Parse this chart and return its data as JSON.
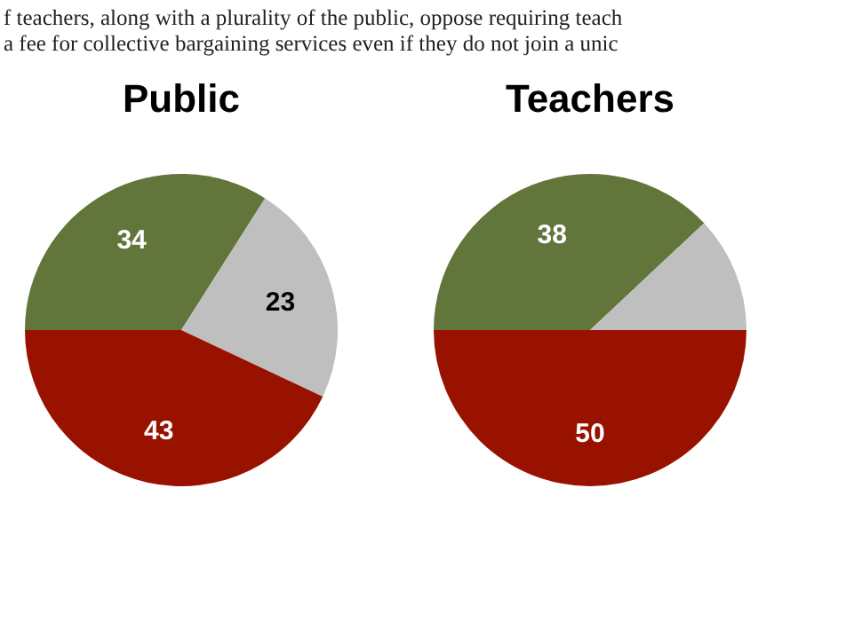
{
  "chart_data": [
    {
      "type": "pie",
      "title": "Public",
      "annotations": [
        "f teachers, along with a plurality of the public, oppose requiring teach",
        "a fee for collective bargaining services even if they do not join a unic"
      ],
      "categories": [
        null,
        null,
        null
      ],
      "values": [
        34,
        23,
        43
      ],
      "colors": [
        "#62753a",
        "#bfbfbf",
        "#991200"
      ],
      "data_labels": true
    },
    {
      "type": "pie",
      "title": "Teachers",
      "categories": [
        null,
        null,
        null
      ],
      "values": [
        38,
        12,
        50
      ],
      "colors": [
        "#62753a",
        "#bfbfbf",
        "#991200"
      ],
      "value_labels": [
        "38",
        null,
        "50"
      ]
    }
  ]
}
